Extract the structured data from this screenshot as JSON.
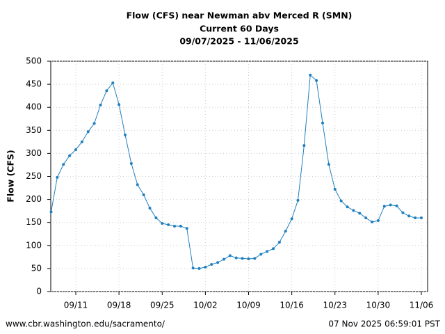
{
  "chart_data": {
    "type": "line",
    "title": "Flow (CFS) near Newman abv Merced R (SMN)",
    "subtitle": "Current 60 Days",
    "date_range": "09/07/2025 - 11/06/2025",
    "ylabel": "Flow (CFS)",
    "source": "www.cbr.washington.edu/sacramento/",
    "timestamp": "07 Nov 2025 06:59:01 PST",
    "x": [
      "09/07",
      "09/08",
      "09/09",
      "09/10",
      "09/11",
      "09/12",
      "09/13",
      "09/14",
      "09/15",
      "09/16",
      "09/17",
      "09/18",
      "09/19",
      "09/20",
      "09/21",
      "09/22",
      "09/23",
      "09/24",
      "09/25",
      "09/26",
      "09/27",
      "09/28",
      "09/29",
      "09/30",
      "10/01",
      "10/02",
      "10/03",
      "10/04",
      "10/05",
      "10/06",
      "10/07",
      "10/08",
      "10/09",
      "10/10",
      "10/11",
      "10/12",
      "10/13",
      "10/14",
      "10/15",
      "10/16",
      "10/17",
      "10/18",
      "10/19",
      "10/20",
      "10/21",
      "10/22",
      "10/23",
      "10/24",
      "10/25",
      "10/26",
      "10/27",
      "10/28",
      "10/29",
      "10/30",
      "10/31",
      "11/01",
      "11/02",
      "11/03",
      "11/04",
      "11/05",
      "11/06"
    ],
    "series": [
      {
        "name": "Flow",
        "color": "#1f7fbf",
        "values": [
          173,
          248,
          276,
          295,
          308,
          325,
          347,
          365,
          405,
          436,
          453,
          406,
          340,
          278,
          232,
          210,
          181,
          160,
          148,
          145,
          142,
          142,
          137,
          51,
          50,
          53,
          59,
          63,
          70,
          78,
          73,
          72,
          71,
          72,
          81,
          87,
          93,
          107,
          131,
          158,
          198,
          317,
          470,
          458,
          366,
          276,
          222,
          197,
          184,
          176,
          170,
          160,
          151,
          154,
          185,
          188,
          186,
          171,
          164,
          160,
          160
        ]
      }
    ],
    "xticks": [
      "09/11",
      "09/18",
      "09/25",
      "10/02",
      "10/09",
      "10/16",
      "10/23",
      "10/30",
      "11/06"
    ],
    "ylim": [
      0,
      500
    ],
    "yticks": [
      0,
      50,
      100,
      150,
      200,
      250,
      300,
      350,
      400,
      450,
      500
    ],
    "grid": true
  }
}
